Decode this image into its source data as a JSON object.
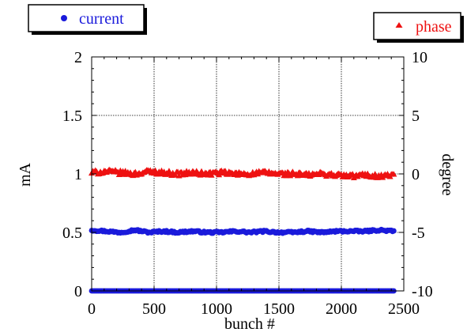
{
  "chart_data": {
    "type": "scatter",
    "xlabel": "bunch #",
    "ylabel": "mA",
    "y2label": "degree",
    "xlim": [
      0,
      2500
    ],
    "ylim": [
      0,
      2
    ],
    "y2lim": [
      -10,
      10
    ],
    "xticks": [
      0,
      500,
      1000,
      1500,
      2000,
      2500
    ],
    "yticks": [
      0,
      0.5,
      1,
      1.5,
      2
    ],
    "y2ticks": [
      -10,
      -5,
      0,
      5,
      10
    ],
    "xtick_labels": [
      "0",
      "500",
      "1000",
      "1500",
      "2000",
      "2500"
    ],
    "ytick_labels": [
      "0",
      "0.5",
      "1",
      "1.5",
      "2"
    ],
    "y2tick_labels": [
      "-10",
      "-5",
      "0",
      "5",
      "10"
    ],
    "grid": true,
    "legend": [
      {
        "label": "current",
        "color": "#1a1adb",
        "marker": "circle",
        "position": "top-left"
      },
      {
        "label": "phase",
        "color": "#ee1111",
        "marker": "triangle",
        "position": "top-right"
      }
    ],
    "series": [
      {
        "name": "current",
        "axis": "left",
        "color": "#1a1adb",
        "marker": "circle",
        "x_range": [
          0,
          2420
        ],
        "values": [
          0.52,
          0.51,
          0.5,
          0.52,
          0.5,
          0.51,
          0.5,
          0.51,
          0.5,
          0.5,
          0.51,
          0.5,
          0.51,
          0.5,
          0.5,
          0.51,
          0.5,
          0.51,
          0.51,
          0.51,
          0.52,
          0.51
        ]
      },
      {
        "name": "current",
        "axis": "left",
        "color": "#1a1adb",
        "marker": "circle",
        "x_range": [
          0,
          2420
        ],
        "values": [
          0.0,
          0.0
        ]
      },
      {
        "name": "phase",
        "axis": "right",
        "color": "#ee1111",
        "marker": "triangle",
        "x_range": [
          0,
          2420
        ],
        "values": [
          0.1,
          0.2,
          0.1,
          0.0,
          0.2,
          0.1,
          0.0,
          0.1,
          0.0,
          0.1,
          0.0,
          0.0,
          0.1,
          0.0,
          0.0,
          -0.1,
          0.0,
          -0.1,
          -0.2,
          -0.1,
          -0.2,
          -0.1
        ]
      }
    ]
  }
}
